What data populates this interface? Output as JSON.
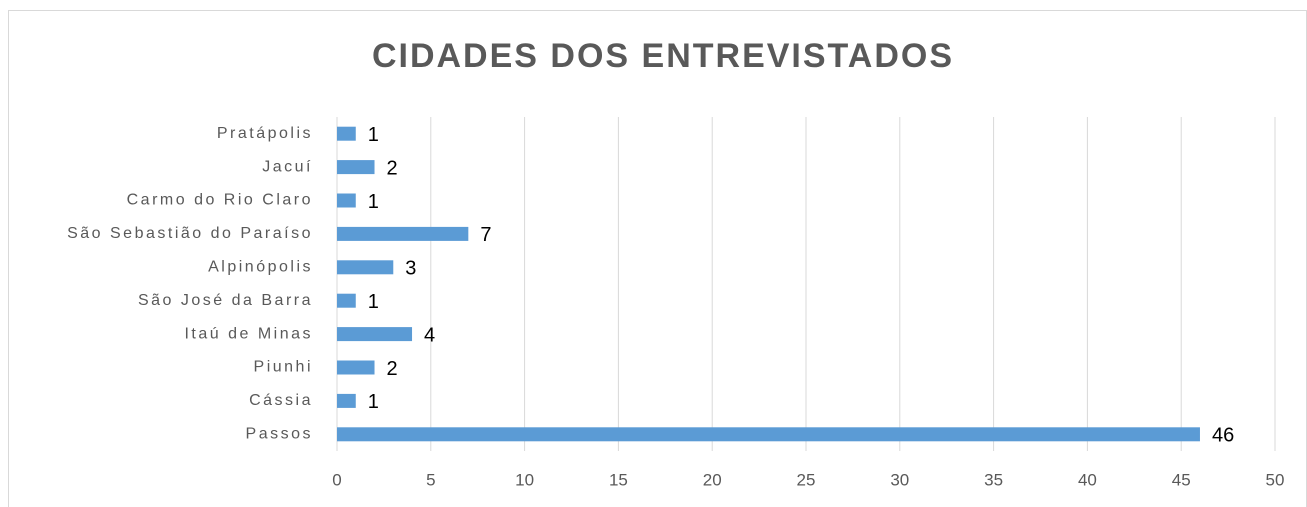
{
  "chart_data": {
    "type": "bar",
    "orientation": "horizontal",
    "title": "CIDADES DOS ENTREVISTADOS",
    "categories": [
      "Passos",
      "Cássia",
      "Piunhi",
      "Itaú de Minas",
      "São José da Barra",
      "Alpinópolis",
      "São Sebastião do Paraíso",
      "Carmo do Rio Claro",
      "Jacuí",
      "Pratápolis"
    ],
    "values": [
      46,
      1,
      2,
      4,
      1,
      3,
      7,
      1,
      2,
      1
    ],
    "color": "#5b9bd5",
    "xlim": [
      0,
      50
    ],
    "xticks": [
      0,
      5,
      10,
      15,
      20,
      25,
      30,
      35,
      40,
      45,
      50
    ],
    "grid": true
  }
}
